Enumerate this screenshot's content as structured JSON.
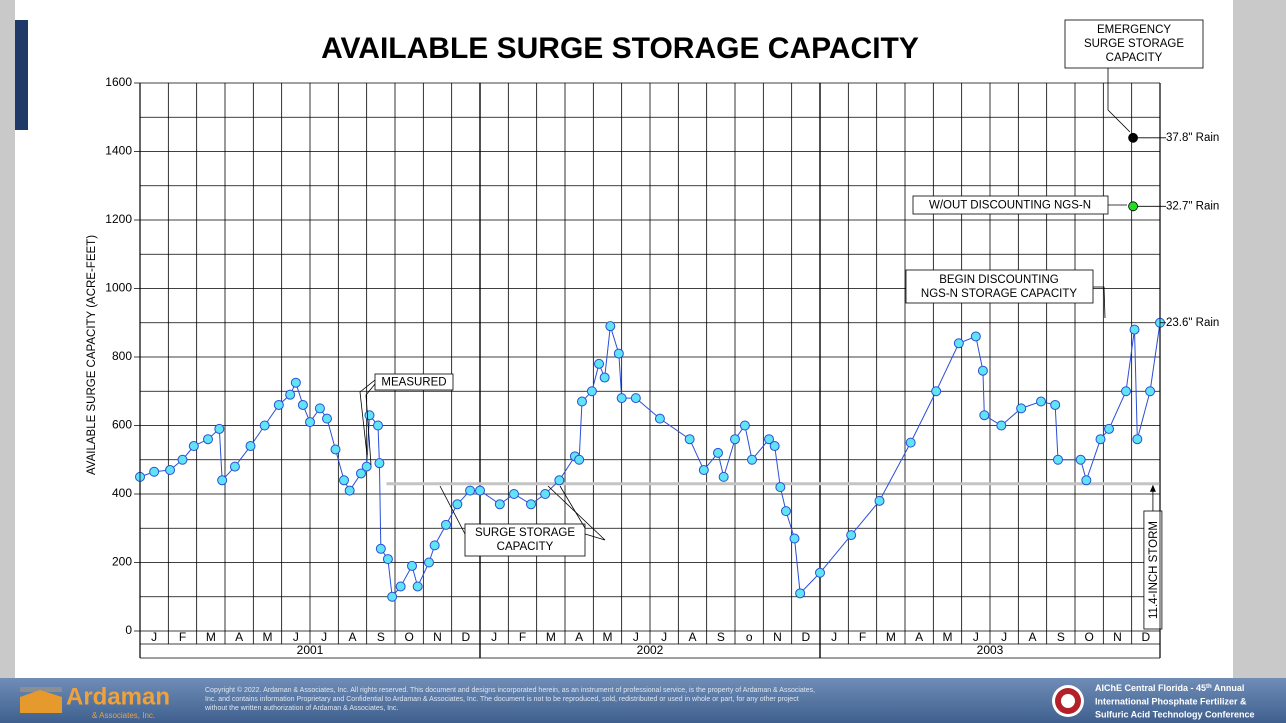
{
  "chart_data": {
    "type": "scatter",
    "title": "AVAILABLE SURGE STORAGE CAPACITY",
    "ylabel": "AVAILABLE SURGE CAPACITY (ACRE-FEET)",
    "ylim": [
      0,
      1600
    ],
    "yticks": [
      0,
      200,
      400,
      600,
      800,
      1000,
      1200,
      1400,
      1600
    ],
    "yminor": [
      100,
      300,
      500,
      700,
      900,
      1100,
      1300,
      1500
    ],
    "xlim": [
      0,
      36
    ],
    "xticks": [
      0,
      1,
      2,
      3,
      4,
      5,
      6,
      7,
      8,
      9,
      10,
      11,
      12,
      13,
      14,
      15,
      16,
      17,
      18,
      19,
      20,
      21,
      22,
      23,
      24,
      25,
      26,
      27,
      28,
      29,
      30,
      31,
      32,
      33,
      34,
      35,
      36
    ],
    "months": [
      "J",
      "F",
      "M",
      "A",
      "M",
      "J",
      "J",
      "A",
      "S",
      "O",
      "N",
      "D",
      "J",
      "F",
      "M",
      "A",
      "M",
      "J",
      "J",
      "A",
      "S",
      "o",
      "N",
      "D",
      "J",
      "F",
      "M",
      "A",
      "M",
      "J",
      "J",
      "A",
      "S",
      "O",
      "N",
      "D"
    ],
    "years": [
      "2001",
      "2002",
      "2003"
    ],
    "grid": true,
    "color": "#5fe3f5",
    "edge_color": "#2a4fd6",
    "x": [
      0,
      0.5,
      1.06,
      1.5,
      1.9,
      2.4,
      2.8,
      2.9,
      3.35,
      3.9,
      4.4,
      4.9,
      5.3,
      5.5,
      5.75,
      6.0,
      6.35,
      6.6,
      6.9,
      7.2,
      7.4,
      7.8,
      8.0,
      8.1,
      8.4,
      8.45,
      8.5,
      8.75,
      8.9,
      9.2,
      9.6,
      9.8,
      10.2,
      10.4,
      10.8,
      11.2,
      11.65,
      12,
      12.7,
      13.2,
      13.8,
      14.3,
      14.8,
      15.35,
      15.5,
      15.6,
      15.95,
      16.2,
      16.4,
      16.6,
      16.9,
      17.0,
      17.5,
      18.35,
      19.4,
      19.9,
      20.4,
      20.6,
      21.0,
      21.35,
      21.6,
      22.2,
      22.4,
      22.6,
      22.8,
      23.1,
      23.3,
      24.0,
      25.1,
      26.1,
      27.2,
      28.1,
      28.9,
      29.5,
      29.75,
      29.8,
      30.4,
      31.1,
      31.8,
      32.3,
      32.4,
      33.2,
      33.4,
      33.9,
      34.2,
      34.8,
      35.1,
      35.2,
      35.65,
      36.0
    ],
    "values": [
      450,
      465,
      470,
      500,
      540,
      560,
      590,
      440,
      480,
      540,
      600,
      660,
      690,
      725,
      660,
      610,
      650,
      620,
      530,
      440,
      410,
      460,
      480,
      630,
      600,
      490,
      240,
      210,
      100,
      130,
      190,
      130,
      200,
      250,
      310,
      370,
      410,
      410,
      370,
      400,
      370,
      400,
      440,
      510,
      500,
      670,
      700,
      780,
      740,
      890,
      810,
      680,
      680,
      620,
      560,
      470,
      520,
      450,
      560,
      600,
      500,
      560,
      540,
      420,
      350,
      270,
      110,
      170,
      280,
      380,
      550,
      700,
      840,
      860,
      760,
      630,
      600,
      650,
      670,
      660,
      500,
      500,
      440,
      560,
      590,
      700,
      880,
      560,
      700,
      900
    ],
    "points": [
      {
        "x": 35.05,
        "value": 1440,
        "color": "#000000",
        "label": "37.8\" Rain"
      },
      {
        "x": 35.05,
        "value": 1240,
        "color": "#22dd22",
        "label": "32.7\" Rain"
      }
    ],
    "end_label": "23.6\" Rain",
    "surge_line": {
      "value": 430,
      "x": [
        8.7,
        36
      ],
      "color": "#c4c4c4"
    },
    "storm": {
      "x": 35.75,
      "label": "11.4-INCH STORM"
    },
    "annotations": {
      "measured": "MEASURED",
      "surge": [
        "SURGE STORAGE",
        "CAPACITY"
      ],
      "begin": [
        "BEGIN DISCOUNTING",
        "NGS-N STORAGE CAPACITY"
      ],
      "without": "W/OUT DISCOUNTING NGS-N",
      "emergency": [
        "EMERGENCY",
        "SURGE STORAGE",
        "CAPACITY"
      ]
    }
  },
  "footer": {
    "logo": "Ardaman",
    "logo_sub": "& Associates, Inc.",
    "copyright": [
      "Copyright © 2022. Ardaman & Associates, Inc. All rights reserved. This document and designs incorporated herein, as an instrument of professional service, is the property of Ardaman & Associates,",
      "Inc. and contains information Proprietary and Confidential to Ardaman & Associates, Inc.  The document is not to be reproduced, sold, redistributed or used in whole or part, for any other project",
      "without the written authorization of Ardaman & Associates, Inc."
    ],
    "conference": [
      [
        "AIChE Central Florida - 45",
        "th",
        " Annual"
      ],
      [
        "International Phosphate Fertilizer &"
      ],
      [
        "Sulfuric Acid Technology Conference"
      ]
    ]
  }
}
